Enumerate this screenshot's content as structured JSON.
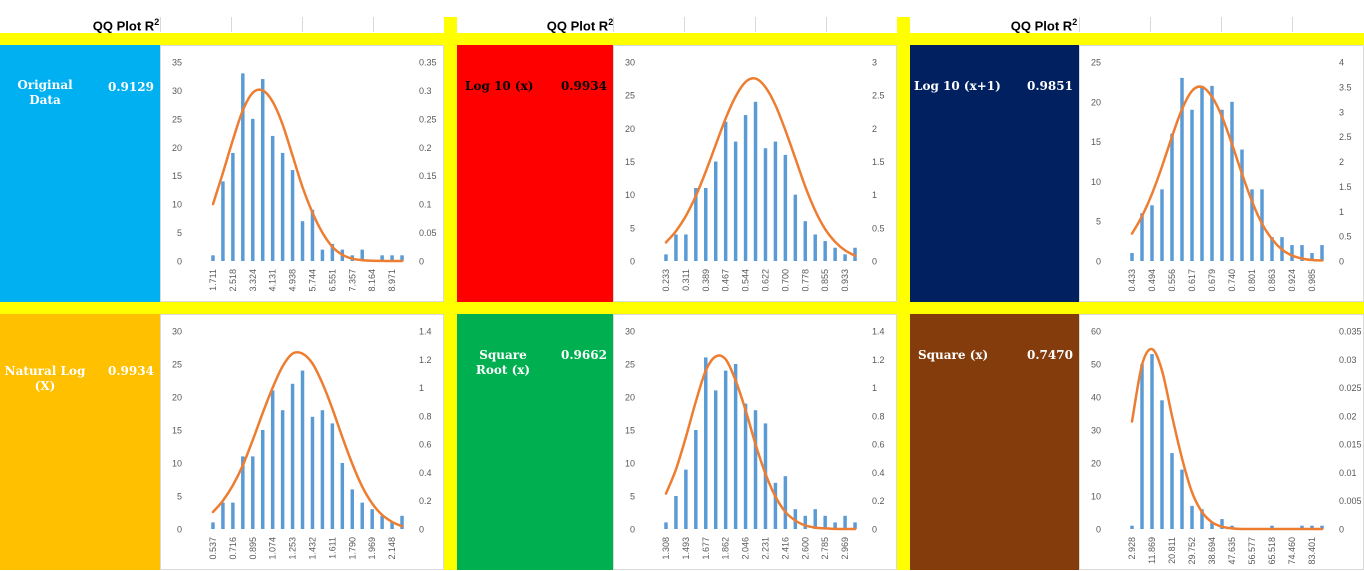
{
  "header": {
    "title_text": "QQ Plot R",
    "title_sup": "2"
  },
  "colors": {
    "band": "#ffff00",
    "bar": "#5b9bd5",
    "curve": "#ed7d31",
    "tick_text": "#595959"
  },
  "panels": [
    {
      "id": "original",
      "label": "Original Data",
      "r2": "0.9129",
      "bg": "#00b0f0",
      "text_color": "light"
    },
    {
      "id": "log10",
      "label": "Log 10 (x)",
      "r2": "0.9934",
      "bg": "#ff0000",
      "text_color": "dark"
    },
    {
      "id": "log10p1",
      "label": "Log 10 (x+1)",
      "r2": "0.9851",
      "bg": "#002060",
      "text_color": "light"
    },
    {
      "id": "ln",
      "label": "Natural Log (X)",
      "r2": "0.9934",
      "bg": "#ffc000",
      "text_color": "light"
    },
    {
      "id": "sqrt",
      "label": "Square Root (x)",
      "r2": "0.9662",
      "bg": "#00b050",
      "text_color": "light"
    },
    {
      "id": "square",
      "label": "Square (x)",
      "r2": "0.7470",
      "bg": "#843c0c",
      "text_color": "light"
    }
  ],
  "chart_data": [
    {
      "type": "bar",
      "panel": "Original Data",
      "x_tick_labels": [
        "1.711",
        "2.518",
        "3.324",
        "4.131",
        "4.938",
        "5.744",
        "6.551",
        "7.357",
        "8.164",
        "8.971"
      ],
      "bar_values": [
        1,
        14,
        19,
        33,
        25,
        32,
        22,
        19,
        16,
        7,
        9,
        2,
        3,
        2,
        1,
        2,
        0,
        1,
        1,
        1
      ],
      "left_ticks": [
        0,
        5,
        10,
        15,
        20,
        25,
        30,
        35
      ],
      "right_ticks": [
        "0",
        "0.05",
        "0.1",
        "0.15",
        "0.2",
        "0.25",
        "0.3",
        "0.35"
      ],
      "left_max": 35,
      "right_max": 0.35,
      "curve_values": [
        0.1,
        0.155,
        0.213,
        0.265,
        0.296,
        0.3,
        0.28,
        0.24,
        0.185,
        0.13,
        0.085,
        0.05,
        0.025,
        0.011,
        0.004,
        0.0015,
        0.0005,
        0.0001,
        0.0,
        0.0
      ]
    },
    {
      "type": "bar",
      "panel": "Log 10 (x)",
      "x_tick_labels": [
        "0.233",
        "0.311",
        "0.389",
        "0.467",
        "0.544",
        "0.622",
        "0.700",
        "0.778",
        "0.855",
        "0.933"
      ],
      "bar_values": [
        1,
        4,
        4,
        11,
        11,
        15,
        21,
        18,
        22,
        24,
        17,
        18,
        16,
        10,
        6,
        4,
        3,
        2,
        1,
        2
      ],
      "left_ticks": [
        0,
        5,
        10,
        15,
        20,
        25,
        30
      ],
      "right_ticks": [
        "0",
        "0.5",
        "1",
        "1.5",
        "2",
        "2.5",
        "3"
      ],
      "left_max": 30,
      "right_max": 3,
      "curve_values": [
        0.28,
        0.45,
        0.68,
        0.98,
        1.35,
        1.75,
        2.15,
        2.48,
        2.7,
        2.75,
        2.62,
        2.35,
        1.97,
        1.55,
        1.12,
        0.76,
        0.48,
        0.29,
        0.16,
        0.08
      ]
    },
    {
      "type": "bar",
      "panel": "Log 10 (x+1)",
      "x_tick_labels": [
        "0.433",
        "0.494",
        "0.556",
        "0.617",
        "0.679",
        "0.740",
        "0.801",
        "0.863",
        "0.924",
        "0.985"
      ],
      "bar_values": [
        1,
        6,
        7,
        9,
        16,
        23,
        19,
        22,
        22,
        19,
        20,
        14,
        9,
        9,
        3,
        3,
        2,
        2,
        1,
        2
      ],
      "left_ticks": [
        0,
        5,
        10,
        15,
        20,
        25
      ],
      "right_ticks": [
        "0",
        "0.5",
        "1",
        "1.5",
        "2",
        "2.5",
        "3",
        "3.5",
        "4"
      ],
      "left_max": 25,
      "right_max": 4,
      "curve_values": [
        0.55,
        0.9,
        1.35,
        1.9,
        2.5,
        3.05,
        3.42,
        3.5,
        3.3,
        2.9,
        2.35,
        1.75,
        1.2,
        0.75,
        0.44,
        0.23,
        0.11,
        0.05,
        0.02,
        0.01
      ]
    },
    {
      "type": "bar",
      "panel": "Natural Log (X)",
      "x_tick_labels": [
        "0.537",
        "0.716",
        "0.895",
        "1.074",
        "1.253",
        "1.432",
        "1.611",
        "1.790",
        "1.969",
        "2.148"
      ],
      "bar_values": [
        1,
        4,
        4,
        11,
        11,
        15,
        21,
        18,
        22,
        24,
        17,
        18,
        16,
        10,
        6,
        4,
        3,
        2,
        1,
        2
      ],
      "left_ticks": [
        0,
        5,
        10,
        15,
        20,
        25,
        30
      ],
      "right_ticks": [
        "0",
        "0.2",
        "0.4",
        "0.6",
        "0.8",
        "1",
        "1.2",
        "1.4"
      ],
      "left_max": 30,
      "right_max": 1.4,
      "curve_values": [
        0.12,
        0.2,
        0.31,
        0.45,
        0.63,
        0.82,
        1.0,
        1.15,
        1.24,
        1.24,
        1.17,
        1.03,
        0.85,
        0.65,
        0.46,
        0.3,
        0.18,
        0.1,
        0.05,
        0.02
      ]
    },
    {
      "type": "bar",
      "panel": "Square Root (x)",
      "x_tick_labels": [
        "1.308",
        "1.493",
        "1.677",
        "1.862",
        "2.046",
        "2.231",
        "2.416",
        "2.600",
        "2.785",
        "2.969"
      ],
      "bar_values": [
        1,
        5,
        9,
        15,
        26,
        21,
        24,
        25,
        19,
        18,
        16,
        7,
        8,
        3,
        2,
        3,
        2,
        1,
        2,
        1
      ],
      "left_ticks": [
        0,
        5,
        10,
        15,
        20,
        25,
        30
      ],
      "right_ticks": [
        "0",
        "0.2",
        "0.4",
        "0.6",
        "0.8",
        "1",
        "1.2",
        "1.4"
      ],
      "left_max": 30,
      "right_max": 1.4,
      "curve_values": [
        0.25,
        0.42,
        0.65,
        0.9,
        1.12,
        1.22,
        1.2,
        1.05,
        0.84,
        0.6,
        0.39,
        0.23,
        0.12,
        0.06,
        0.025,
        0.01,
        0.004,
        0.001,
        0.0,
        0.0
      ]
    },
    {
      "type": "bar",
      "panel": "Square (x)",
      "x_tick_labels": [
        "2.928",
        "11.869",
        "20.811",
        "29.752",
        "38.694",
        "47.635",
        "56.577",
        "65.518",
        "74.460",
        "83.401"
      ],
      "bar_values": [
        1,
        50,
        53,
        39,
        23,
        18,
        7,
        6,
        2,
        3,
        1,
        0,
        0,
        0,
        1,
        0,
        0,
        1,
        1,
        1
      ],
      "left_ticks": [
        0,
        10,
        20,
        30,
        40,
        50,
        60
      ],
      "right_ticks": [
        "0",
        "0.005",
        "0.01",
        "0.015",
        "0.02",
        "0.025",
        "0.03",
        "0.035"
      ],
      "left_max": 60,
      "right_max": 0.035,
      "curve_values": [
        0.019,
        0.029,
        0.0318,
        0.028,
        0.02,
        0.0125,
        0.0065,
        0.003,
        0.0012,
        0.0004,
        0.0001,
        0.0,
        0.0,
        0.0,
        0.0,
        0.0,
        0.0,
        0.0,
        0.0,
        0.0
      ]
    }
  ]
}
